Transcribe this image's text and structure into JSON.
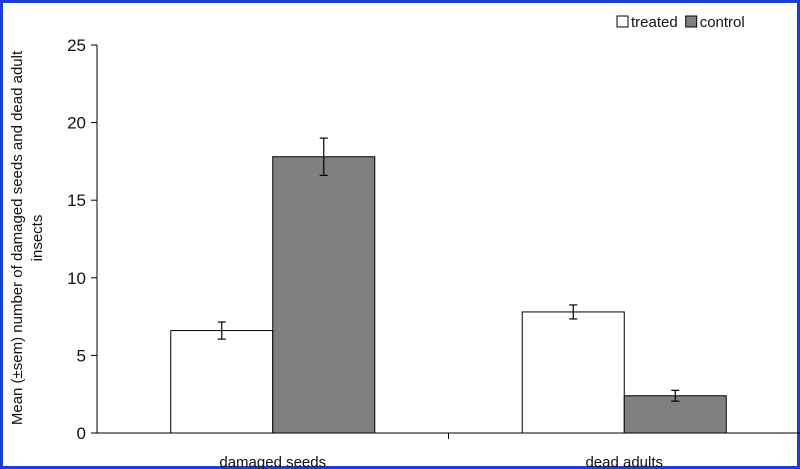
{
  "chart_data": {
    "type": "bar",
    "categories": [
      "damaged seeds",
      "dead adults"
    ],
    "series": [
      {
        "name": "treated",
        "values": [
          6.6,
          7.8
        ],
        "errors": [
          0.55,
          0.45
        ],
        "color": "#ffffff"
      },
      {
        "name": "control",
        "values": [
          17.8,
          2.4
        ],
        "errors": [
          1.2,
          0.35
        ],
        "color": "#808080"
      }
    ],
    "ylabel_lines": [
      "Mean (±sem) number of damaged seeds and dead adult",
      "insects"
    ],
    "xlabel": "",
    "ylim": [
      0,
      25
    ],
    "yticks": [
      0,
      5,
      10,
      15,
      20,
      25
    ],
    "grid": false,
    "legend": "top-right"
  }
}
